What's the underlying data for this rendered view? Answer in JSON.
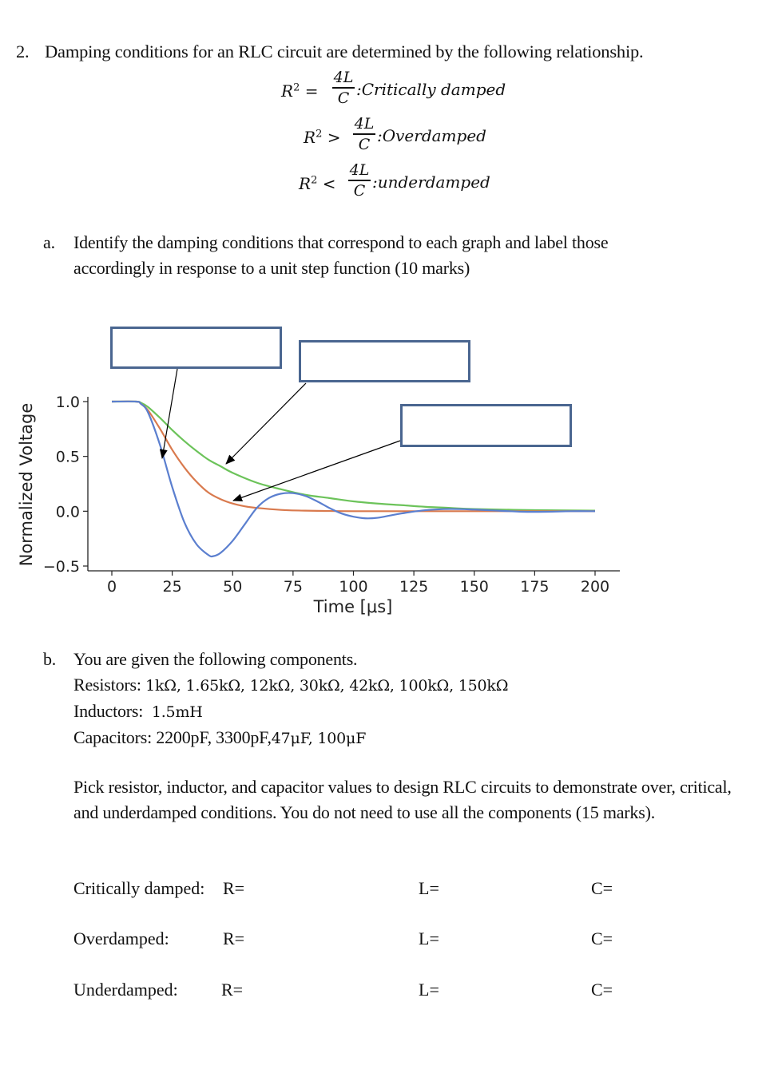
{
  "question": {
    "number": "2.",
    "title": "Damping conditions for an RLC circuit are determined by the following relationship."
  },
  "equations": [
    {
      "lhs": "R",
      "sup": "2",
      "op": "=",
      "num": "4L",
      "den": "C",
      "condition": ":Critically damped"
    },
    {
      "lhs": "R",
      "sup": "2",
      "op": ">",
      "num": "4L",
      "den": "C",
      "condition": ":Overdamped"
    },
    {
      "lhs": "R",
      "sup": "2",
      "op": "<",
      "num": "4L",
      "den": "C",
      "condition": ":underdamped"
    }
  ],
  "part_a": {
    "label": "a.",
    "text": "Identify the damping conditions that correspond to each graph and label those accordingly in response to a unit step function (10 marks)"
  },
  "answer_boxes": [
    {
      "id": "box-1",
      "value": "",
      "points_to": "blue"
    },
    {
      "id": "box-2",
      "value": "",
      "points_to": "green"
    },
    {
      "id": "box-3",
      "value": "",
      "points_to": "orange"
    }
  ],
  "chart_data": {
    "type": "line",
    "title": "",
    "xlabel": "Time [μs]",
    "ylabel": "Normalized Voltage",
    "xlim": [
      0,
      200
    ],
    "ylim": [
      -0.5,
      1.0
    ],
    "xticks": [
      0,
      25,
      50,
      75,
      100,
      125,
      150,
      175,
      200
    ],
    "yticks": [
      "1.0",
      "0.5",
      "0.0",
      "−0.5"
    ],
    "ytick_values": [
      1.0,
      0.5,
      0.0,
      -0.5
    ],
    "grid": false,
    "legend": "none",
    "series": [
      {
        "name": "underdamped (blue)",
        "color": "#5b7fcf",
        "x": [
          0,
          10,
          12,
          15,
          20,
          25,
          30,
          35,
          40,
          42,
          45,
          50,
          55,
          60,
          65,
          70,
          75,
          80,
          85,
          90,
          95,
          100,
          105,
          110,
          115,
          120,
          130,
          140,
          150,
          160,
          170,
          180,
          190,
          200
        ],
        "y": [
          1.0,
          1.0,
          0.98,
          0.9,
          0.6,
          0.22,
          -0.1,
          -0.3,
          -0.4,
          -0.41,
          -0.38,
          -0.27,
          -0.12,
          0.03,
          0.12,
          0.16,
          0.165,
          0.14,
          0.09,
          0.03,
          -0.02,
          -0.05,
          -0.065,
          -0.06,
          -0.04,
          -0.02,
          0.01,
          0.02,
          0.015,
          0.005,
          -0.005,
          -0.005,
          0.0,
          0.0
        ]
      },
      {
        "name": "critically damped (orange)",
        "color": "#d97a4e",
        "x": [
          0,
          10,
          12,
          15,
          20,
          25,
          30,
          35,
          40,
          45,
          50,
          55,
          60,
          70,
          80,
          90,
          100,
          120,
          150,
          200
        ],
        "y": [
          1.0,
          1.0,
          0.98,
          0.92,
          0.75,
          0.56,
          0.4,
          0.27,
          0.17,
          0.11,
          0.07,
          0.045,
          0.03,
          0.012,
          0.005,
          0.002,
          0.0,
          0.0,
          0.0,
          0.0
        ]
      },
      {
        "name": "overdamped (green)",
        "color": "#6cc35a",
        "x": [
          0,
          10,
          12,
          15,
          20,
          25,
          30,
          35,
          40,
          45,
          50,
          60,
          70,
          80,
          90,
          100,
          110,
          120,
          130,
          140,
          150,
          175,
          200
        ],
        "y": [
          1.0,
          1.0,
          0.99,
          0.95,
          0.85,
          0.74,
          0.64,
          0.55,
          0.47,
          0.41,
          0.35,
          0.26,
          0.2,
          0.15,
          0.12,
          0.09,
          0.07,
          0.055,
          0.04,
          0.03,
          0.02,
          0.01,
          0.005
        ]
      }
    ]
  },
  "part_b": {
    "label": "b.",
    "intro": "You are given the following components.",
    "resistors_label": "Resistors:",
    "resistors": "1kΩ, 1.65kΩ, 12kΩ, 30kΩ, 42kΩ, 100kΩ, 150kΩ",
    "inductors_label": "Inductors:",
    "inductors": "1.5mH",
    "capacitors_label": "Capacitors:",
    "capacitors_plain": "2200pF, 3300pF,",
    "capacitors_math": "47μF, 100μF",
    "instructions": "Pick resistor, inductor, and capacitor values to design RLC circuits to demonstrate over, critical, and underdamped conditions. You do not need to use all the components (15 marks)."
  },
  "answer_rows": [
    {
      "label": "Critically damped:",
      "r": "R=",
      "l": "L=",
      "c": "C="
    },
    {
      "label": "Overdamped:",
      "r": "R=",
      "l": "L=",
      "c": "C="
    },
    {
      "label": "Underdamped:",
      "r": "R=",
      "l": "L=",
      "c": "C="
    }
  ],
  "colors": {
    "box_border": "#4a6690",
    "axis": "#222222",
    "arrow": "#000000"
  }
}
